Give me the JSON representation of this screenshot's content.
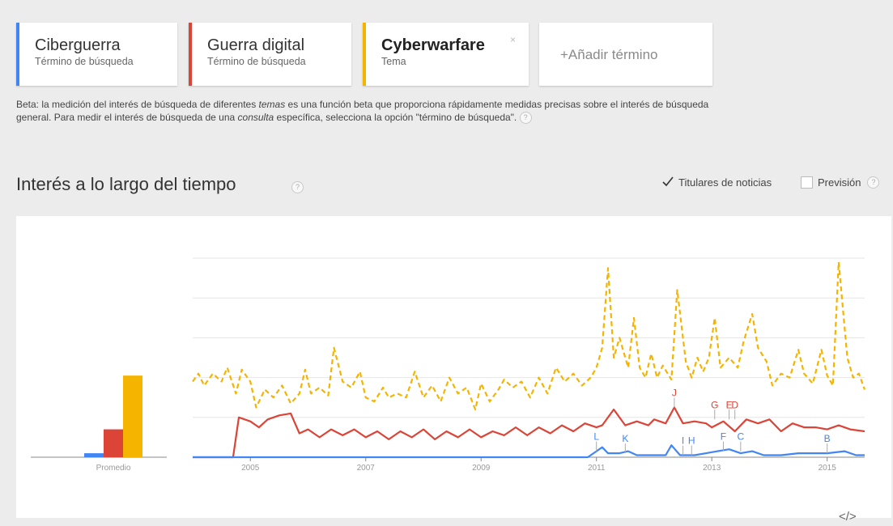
{
  "terms": [
    {
      "title": "Ciberguerra",
      "subtitle": "Término de búsqueda",
      "color": "#4285f4"
    },
    {
      "title": "Guerra digital",
      "subtitle": "Término de búsqueda",
      "color": "#db4437"
    },
    {
      "title": "Cyberwarfare",
      "subtitle": "Tema",
      "color": "#f4b400",
      "close": "×"
    }
  ],
  "add_term": "+Añadir término",
  "beta": {
    "p1": "Beta: la medición del interés de búsqueda de diferentes ",
    "em1": "temas",
    "p2": " es una función beta que proporciona rápidamente medidas precisas sobre el interés de búsqueda general. Para medir el interés de búsqueda de una ",
    "em2": "consulta",
    "p3": " específica, selecciona la opción \"término de búsqueda\"."
  },
  "help_glyph": "?",
  "section_title": "Interés a lo largo del tiempo",
  "options": {
    "headlines": {
      "label": "Titulares de noticias",
      "checked": true
    },
    "forecast": {
      "label": "Previsión",
      "checked": false
    }
  },
  "embed_icon": "</>",
  "chart_data": {
    "type": "line",
    "xlabel": "",
    "ylabel": "",
    "ylim": [
      0,
      100
    ],
    "x_range": [
      "2004-01",
      "2015-05"
    ],
    "x_ticks": [
      "2005",
      "2007",
      "2009",
      "2011",
      "2013",
      "2015"
    ],
    "averages": {
      "label": "Promedio",
      "bars": [
        {
          "series": "Ciberguerra",
          "value": 2,
          "color": "#4285f4"
        },
        {
          "series": "Guerra digital",
          "value": 14,
          "color": "#db4437"
        },
        {
          "series": "Cyberwarfare",
          "value": 41,
          "color": "#f4b400"
        }
      ]
    },
    "series": [
      {
        "name": "Cyberwarfare",
        "color": "#f4b400",
        "dashed": true,
        "points": [
          [
            2004.0,
            38
          ],
          [
            2004.1,
            42
          ],
          [
            2004.2,
            36
          ],
          [
            2004.35,
            42
          ],
          [
            2004.5,
            38
          ],
          [
            2004.6,
            45
          ],
          [
            2004.75,
            32
          ],
          [
            2004.85,
            44
          ],
          [
            2005.0,
            38
          ],
          [
            2005.1,
            25
          ],
          [
            2005.25,
            34
          ],
          [
            2005.4,
            30
          ],
          [
            2005.55,
            36
          ],
          [
            2005.7,
            27
          ],
          [
            2005.85,
            32
          ],
          [
            2005.95,
            44
          ],
          [
            2006.05,
            32
          ],
          [
            2006.2,
            35
          ],
          [
            2006.35,
            31
          ],
          [
            2006.45,
            55
          ],
          [
            2006.6,
            38
          ],
          [
            2006.75,
            35
          ],
          [
            2006.9,
            43
          ],
          [
            2007.0,
            30
          ],
          [
            2007.15,
            28
          ],
          [
            2007.3,
            35
          ],
          [
            2007.4,
            30
          ],
          [
            2007.55,
            32
          ],
          [
            2007.7,
            30
          ],
          [
            2007.85,
            43
          ],
          [
            2008.0,
            30
          ],
          [
            2008.15,
            36
          ],
          [
            2008.3,
            28
          ],
          [
            2008.45,
            40
          ],
          [
            2008.6,
            32
          ],
          [
            2008.75,
            35
          ],
          [
            2008.9,
            24
          ],
          [
            2009.0,
            37
          ],
          [
            2009.15,
            28
          ],
          [
            2009.3,
            34
          ],
          [
            2009.4,
            39
          ],
          [
            2009.55,
            35
          ],
          [
            2009.7,
            38
          ],
          [
            2009.85,
            30
          ],
          [
            2010.0,
            40
          ],
          [
            2010.15,
            32
          ],
          [
            2010.3,
            45
          ],
          [
            2010.45,
            38
          ],
          [
            2010.6,
            42
          ],
          [
            2010.75,
            36
          ],
          [
            2010.9,
            40
          ],
          [
            2011.0,
            45
          ],
          [
            2011.1,
            55
          ],
          [
            2011.2,
            95
          ],
          [
            2011.3,
            50
          ],
          [
            2011.4,
            60
          ],
          [
            2011.55,
            45
          ],
          [
            2011.65,
            70
          ],
          [
            2011.75,
            45
          ],
          [
            2011.85,
            40
          ],
          [
            2011.95,
            52
          ],
          [
            2012.05,
            40
          ],
          [
            2012.15,
            46
          ],
          [
            2012.3,
            39
          ],
          [
            2012.4,
            84
          ],
          [
            2012.55,
            48
          ],
          [
            2012.65,
            40
          ],
          [
            2012.75,
            50
          ],
          [
            2012.85,
            43
          ],
          [
            2012.95,
            50
          ],
          [
            2013.05,
            70
          ],
          [
            2013.15,
            45
          ],
          [
            2013.3,
            50
          ],
          [
            2013.45,
            45
          ],
          [
            2013.55,
            58
          ],
          [
            2013.7,
            72
          ],
          [
            2013.8,
            55
          ],
          [
            2013.95,
            48
          ],
          [
            2014.05,
            36
          ],
          [
            2014.2,
            42
          ],
          [
            2014.35,
            40
          ],
          [
            2014.5,
            54
          ],
          [
            2014.6,
            42
          ],
          [
            2014.75,
            37
          ],
          [
            2014.9,
            54
          ],
          [
            2015.0,
            41
          ],
          [
            2015.1,
            36
          ],
          [
            2015.2,
            98
          ],
          [
            2015.35,
            50
          ],
          [
            2015.45,
            40
          ],
          [
            2015.55,
            42
          ],
          [
            2015.65,
            34
          ]
        ]
      },
      {
        "name": "Guerra digital",
        "color": "#db4437",
        "dashed": false,
        "points": [
          [
            2004.0,
            0
          ],
          [
            2004.7,
            0
          ],
          [
            2004.8,
            20
          ],
          [
            2005.0,
            18
          ],
          [
            2005.15,
            15
          ],
          [
            2005.3,
            19
          ],
          [
            2005.5,
            21
          ],
          [
            2005.7,
            22
          ],
          [
            2005.85,
            12
          ],
          [
            2006.0,
            14
          ],
          [
            2006.2,
            10
          ],
          [
            2006.4,
            14
          ],
          [
            2006.6,
            11
          ],
          [
            2006.8,
            14
          ],
          [
            2007.0,
            10
          ],
          [
            2007.2,
            13
          ],
          [
            2007.4,
            9
          ],
          [
            2007.6,
            13
          ],
          [
            2007.8,
            10
          ],
          [
            2008.0,
            14
          ],
          [
            2008.2,
            9
          ],
          [
            2008.4,
            13
          ],
          [
            2008.6,
            10
          ],
          [
            2008.8,
            14
          ],
          [
            2009.0,
            10
          ],
          [
            2009.2,
            13
          ],
          [
            2009.4,
            11
          ],
          [
            2009.6,
            15
          ],
          [
            2009.8,
            11
          ],
          [
            2010.0,
            15
          ],
          [
            2010.2,
            12
          ],
          [
            2010.4,
            16
          ],
          [
            2010.6,
            13
          ],
          [
            2010.8,
            17
          ],
          [
            2011.0,
            15
          ],
          [
            2011.1,
            16
          ],
          [
            2011.3,
            24
          ],
          [
            2011.5,
            16
          ],
          [
            2011.7,
            18
          ],
          [
            2011.9,
            16
          ],
          [
            2012.0,
            19
          ],
          [
            2012.2,
            17
          ],
          [
            2012.35,
            25
          ],
          [
            2012.5,
            17
          ],
          [
            2012.7,
            18
          ],
          [
            2012.9,
            17
          ],
          [
            2013.0,
            15
          ],
          [
            2013.2,
            18
          ],
          [
            2013.4,
            13
          ],
          [
            2013.6,
            19
          ],
          [
            2013.8,
            17
          ],
          [
            2014.0,
            19
          ],
          [
            2014.2,
            13
          ],
          [
            2014.4,
            17
          ],
          [
            2014.6,
            15
          ],
          [
            2014.8,
            15
          ],
          [
            2015.0,
            14
          ],
          [
            2015.2,
            16
          ],
          [
            2015.4,
            14
          ],
          [
            2015.65,
            13
          ]
        ]
      },
      {
        "name": "Ciberguerra",
        "color": "#4285f4",
        "dashed": false,
        "points": [
          [
            2004.0,
            0
          ],
          [
            2010.85,
            0
          ],
          [
            2011.0,
            3
          ],
          [
            2011.1,
            5
          ],
          [
            2011.2,
            2
          ],
          [
            2011.4,
            2
          ],
          [
            2011.55,
            3
          ],
          [
            2011.7,
            1
          ],
          [
            2012.0,
            1
          ],
          [
            2012.2,
            1
          ],
          [
            2012.3,
            6
          ],
          [
            2012.45,
            1
          ],
          [
            2012.7,
            1
          ],
          [
            2012.9,
            2
          ],
          [
            2013.1,
            3
          ],
          [
            2013.3,
            4
          ],
          [
            2013.5,
            2
          ],
          [
            2013.7,
            3
          ],
          [
            2013.9,
            1
          ],
          [
            2014.2,
            1
          ],
          [
            2014.5,
            2
          ],
          [
            2014.8,
            2
          ],
          [
            2015.0,
            2
          ],
          [
            2015.3,
            3
          ],
          [
            2015.5,
            1
          ],
          [
            2015.65,
            1
          ]
        ]
      }
    ],
    "annotations": [
      {
        "label": "J",
        "x": 2012.35,
        "y": 25,
        "series": "Guerra digital"
      },
      {
        "label": "G",
        "x": 2013.05,
        "y": 19,
        "series": "Guerra digital"
      },
      {
        "label": "E",
        "x": 2013.3,
        "y": 19,
        "series": "Guerra digital"
      },
      {
        "label": "D",
        "x": 2013.4,
        "y": 19,
        "series": "Guerra digital"
      },
      {
        "label": "L",
        "x": 2011.0,
        "y": 3,
        "series": "Ciberguerra"
      },
      {
        "label": "K",
        "x": 2011.5,
        "y": 2,
        "series": "Ciberguerra"
      },
      {
        "label": "I",
        "x": 2012.5,
        "y": 1,
        "series": "Ciberguerra"
      },
      {
        "label": "H",
        "x": 2012.65,
        "y": 1,
        "series": "Ciberguerra"
      },
      {
        "label": "F",
        "x": 2013.2,
        "y": 3,
        "series": "Ciberguerra"
      },
      {
        "label": "C",
        "x": 2013.5,
        "y": 3,
        "series": "Ciberguerra"
      },
      {
        "label": "B",
        "x": 2015.0,
        "y": 2,
        "series": "Ciberguerra"
      }
    ]
  }
}
